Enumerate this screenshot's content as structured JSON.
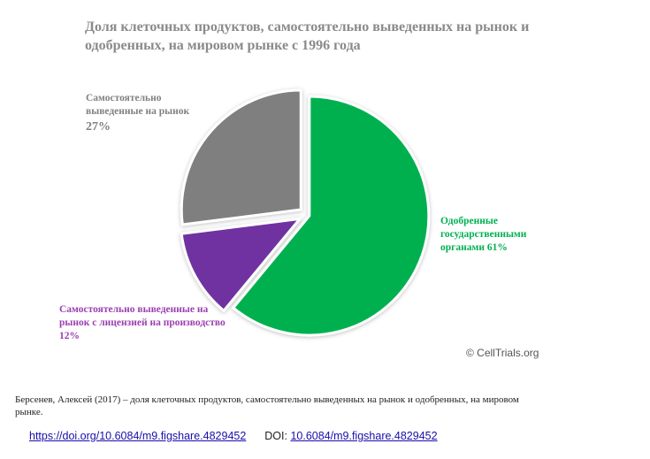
{
  "chart_data": {
    "type": "pie",
    "title": "Доля клеточных продуктов, самостоятельно выведенных на рынок и одобренных, на мировом рынке с 1996 года",
    "slices": [
      {
        "label": "Одобренные государственными органами",
        "pct_text": "61%",
        "value": 61,
        "color": "#00b050"
      },
      {
        "label": "Самостоятельно выведенные на рынок с лицензией на производство",
        "pct_text": "12%",
        "value": 12,
        "color": "#7030a0"
      },
      {
        "label": "Самостоятельно выведенные на рынок",
        "pct_text": "27%",
        "value": 27,
        "color": "#7f7f7f"
      }
    ]
  },
  "labels": {
    "green": "Одобренные государственными органами 61%",
    "purple": "Самостоятельно выведенные на рынок с лицензией на производство 12%",
    "grey_text": "Самостоятельно выведенные на рынок",
    "grey_pct": "27%"
  },
  "watermark": "© CellTrials.org",
  "caption": "Берсенев, Алексей (2017) – доля клеточных продуктов, самостоятельно выведенных на рынок и одобренных, на мировом рынке.",
  "links": {
    "url1": "https://doi.org/10.6084/m9.figshare.4829452",
    "doi_label": "DOI:",
    "url2": "10.6084/m9.figshare.4829452"
  }
}
